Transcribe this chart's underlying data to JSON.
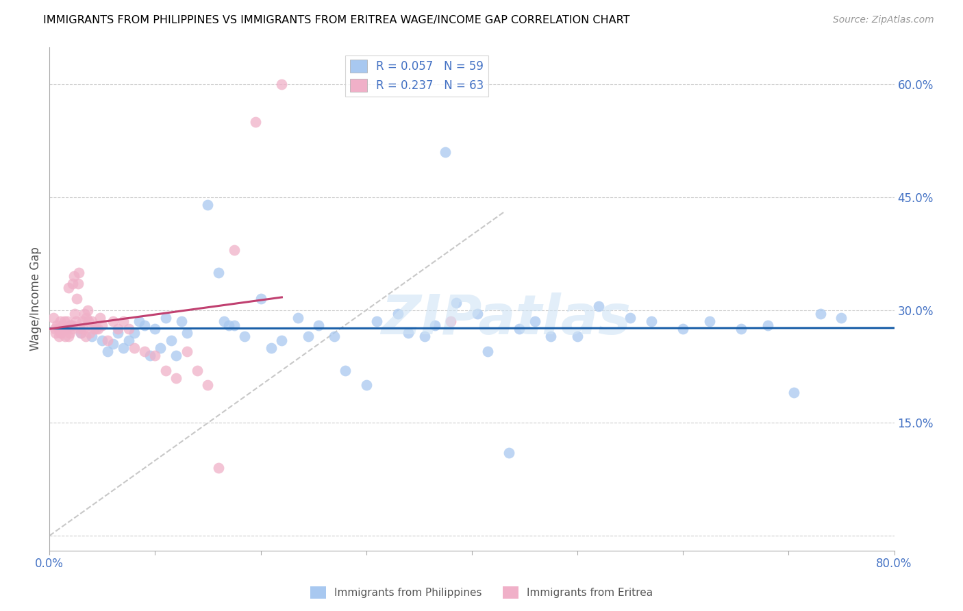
{
  "title": "IMMIGRANTS FROM PHILIPPINES VS IMMIGRANTS FROM ERITREA WAGE/INCOME GAP CORRELATION CHART",
  "source": "Source: ZipAtlas.com",
  "ylabel": "Wage/Income Gap",
  "yticks": [
    0.0,
    0.15,
    0.3,
    0.45,
    0.6
  ],
  "ytick_labels": [
    "",
    "15.0%",
    "30.0%",
    "45.0%",
    "60.0%"
  ],
  "xlim": [
    0.0,
    0.8
  ],
  "ylim": [
    -0.02,
    0.65
  ],
  "philippines_color": "#a8c8f0",
  "eritrea_color": "#f0b0c8",
  "philippines_line_color": "#1a5fa8",
  "eritrea_line_color": "#c04070",
  "diagonal_color": "#c8c8c8",
  "watermark": "ZIPatlas",
  "legend1_label": "R = 0.057   N = 59",
  "legend2_label": "R = 0.237   N = 63",
  "bottom_legend1": "Immigrants from Philippines",
  "bottom_legend2": "Immigrants from Eritrea",
  "philippines_x": [
    0.02,
    0.03,
    0.04,
    0.05,
    0.055,
    0.06,
    0.065,
    0.07,
    0.075,
    0.08,
    0.085,
    0.09,
    0.095,
    0.1,
    0.105,
    0.11,
    0.115,
    0.12,
    0.125,
    0.13,
    0.15,
    0.16,
    0.165,
    0.17,
    0.175,
    0.185,
    0.2,
    0.21,
    0.22,
    0.235,
    0.245,
    0.255,
    0.27,
    0.28,
    0.3,
    0.31,
    0.33,
    0.34,
    0.355,
    0.365,
    0.375,
    0.385,
    0.405,
    0.415,
    0.435,
    0.445,
    0.46,
    0.475,
    0.5,
    0.52,
    0.55,
    0.57,
    0.6,
    0.625,
    0.655,
    0.68,
    0.705,
    0.73,
    0.75
  ],
  "philippines_y": [
    0.28,
    0.27,
    0.265,
    0.26,
    0.245,
    0.255,
    0.27,
    0.25,
    0.26,
    0.27,
    0.285,
    0.28,
    0.24,
    0.275,
    0.25,
    0.29,
    0.26,
    0.24,
    0.285,
    0.27,
    0.44,
    0.35,
    0.285,
    0.28,
    0.28,
    0.265,
    0.315,
    0.25,
    0.26,
    0.29,
    0.265,
    0.28,
    0.265,
    0.22,
    0.2,
    0.285,
    0.295,
    0.27,
    0.265,
    0.28,
    0.51,
    0.31,
    0.295,
    0.245,
    0.11,
    0.275,
    0.285,
    0.265,
    0.265,
    0.305,
    0.29,
    0.285,
    0.275,
    0.285,
    0.275,
    0.28,
    0.19,
    0.295,
    0.29
  ],
  "eritrea_x": [
    0.004,
    0.005,
    0.006,
    0.007,
    0.008,
    0.009,
    0.01,
    0.01,
    0.011,
    0.012,
    0.013,
    0.014,
    0.015,
    0.015,
    0.016,
    0.017,
    0.018,
    0.018,
    0.019,
    0.02,
    0.021,
    0.022,
    0.022,
    0.023,
    0.024,
    0.025,
    0.026,
    0.027,
    0.028,
    0.029,
    0.03,
    0.031,
    0.032,
    0.033,
    0.034,
    0.035,
    0.036,
    0.037,
    0.038,
    0.04,
    0.042,
    0.044,
    0.046,
    0.048,
    0.05,
    0.055,
    0.06,
    0.065,
    0.07,
    0.075,
    0.08,
    0.09,
    0.1,
    0.11,
    0.12,
    0.13,
    0.14,
    0.15,
    0.16,
    0.175,
    0.195,
    0.22,
    0.38
  ],
  "eritrea_y": [
    0.29,
    0.275,
    0.27,
    0.28,
    0.275,
    0.265,
    0.27,
    0.285,
    0.27,
    0.28,
    0.275,
    0.285,
    0.265,
    0.275,
    0.275,
    0.285,
    0.33,
    0.265,
    0.27,
    0.28,
    0.275,
    0.335,
    0.28,
    0.345,
    0.295,
    0.285,
    0.315,
    0.335,
    0.35,
    0.275,
    0.27,
    0.285,
    0.275,
    0.295,
    0.265,
    0.29,
    0.3,
    0.285,
    0.27,
    0.285,
    0.275,
    0.275,
    0.275,
    0.29,
    0.28,
    0.26,
    0.285,
    0.275,
    0.285,
    0.275,
    0.25,
    0.245,
    0.24,
    0.22,
    0.21,
    0.245,
    0.22,
    0.2,
    0.09,
    0.38,
    0.55,
    0.6,
    0.285
  ]
}
